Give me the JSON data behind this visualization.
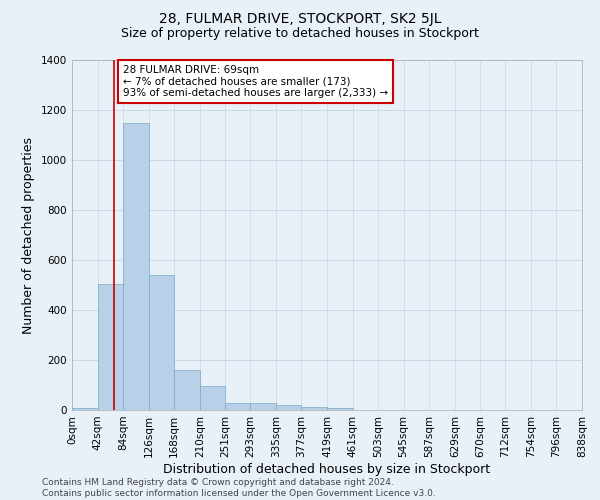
{
  "title": "28, FULMAR DRIVE, STOCKPORT, SK2 5JL",
  "subtitle": "Size of property relative to detached houses in Stockport",
  "xlabel": "Distribution of detached houses by size in Stockport",
  "ylabel": "Number of detached properties",
  "bin_edges": [
    0,
    42,
    84,
    126,
    168,
    210,
    251,
    293,
    335,
    377,
    419,
    461,
    503,
    545,
    587,
    629,
    670,
    712,
    754,
    796,
    838
  ],
  "bar_heights": [
    10,
    505,
    1150,
    540,
    160,
    95,
    28,
    28,
    20,
    12,
    8,
    0,
    0,
    0,
    0,
    0,
    0,
    0,
    0,
    0
  ],
  "bar_color": "#b8d0e8",
  "bar_edge_color": "#7aaac8",
  "grid_color": "#c8d8e8",
  "background_color": "#e8f0f8",
  "property_size": 69,
  "annotation_text": "28 FULMAR DRIVE: 69sqm\n← 7% of detached houses are smaller (173)\n93% of semi-detached houses are larger (2,333) →",
  "annotation_box_color": "#ffffff",
  "annotation_box_edge_color": "#cc0000",
  "vline_color": "#cc0000",
  "ylim": [
    0,
    1400
  ],
  "yticks": [
    0,
    200,
    400,
    600,
    800,
    1000,
    1200,
    1400
  ],
  "tick_labels": [
    "0sqm",
    "42sqm",
    "84sqm",
    "126sqm",
    "168sqm",
    "210sqm",
    "251sqm",
    "293sqm",
    "335sqm",
    "377sqm",
    "419sqm",
    "461sqm",
    "503sqm",
    "545sqm",
    "587sqm",
    "629sqm",
    "670sqm",
    "712sqm",
    "754sqm",
    "796sqm",
    "838sqm"
  ],
  "footer_text": "Contains HM Land Registry data © Crown copyright and database right 2024.\nContains public sector information licensed under the Open Government Licence v3.0.",
  "title_fontsize": 10,
  "subtitle_fontsize": 9,
  "axis_label_fontsize": 9,
  "tick_fontsize": 7.5,
  "annotation_fontsize": 7.5,
  "footer_fontsize": 6.5
}
